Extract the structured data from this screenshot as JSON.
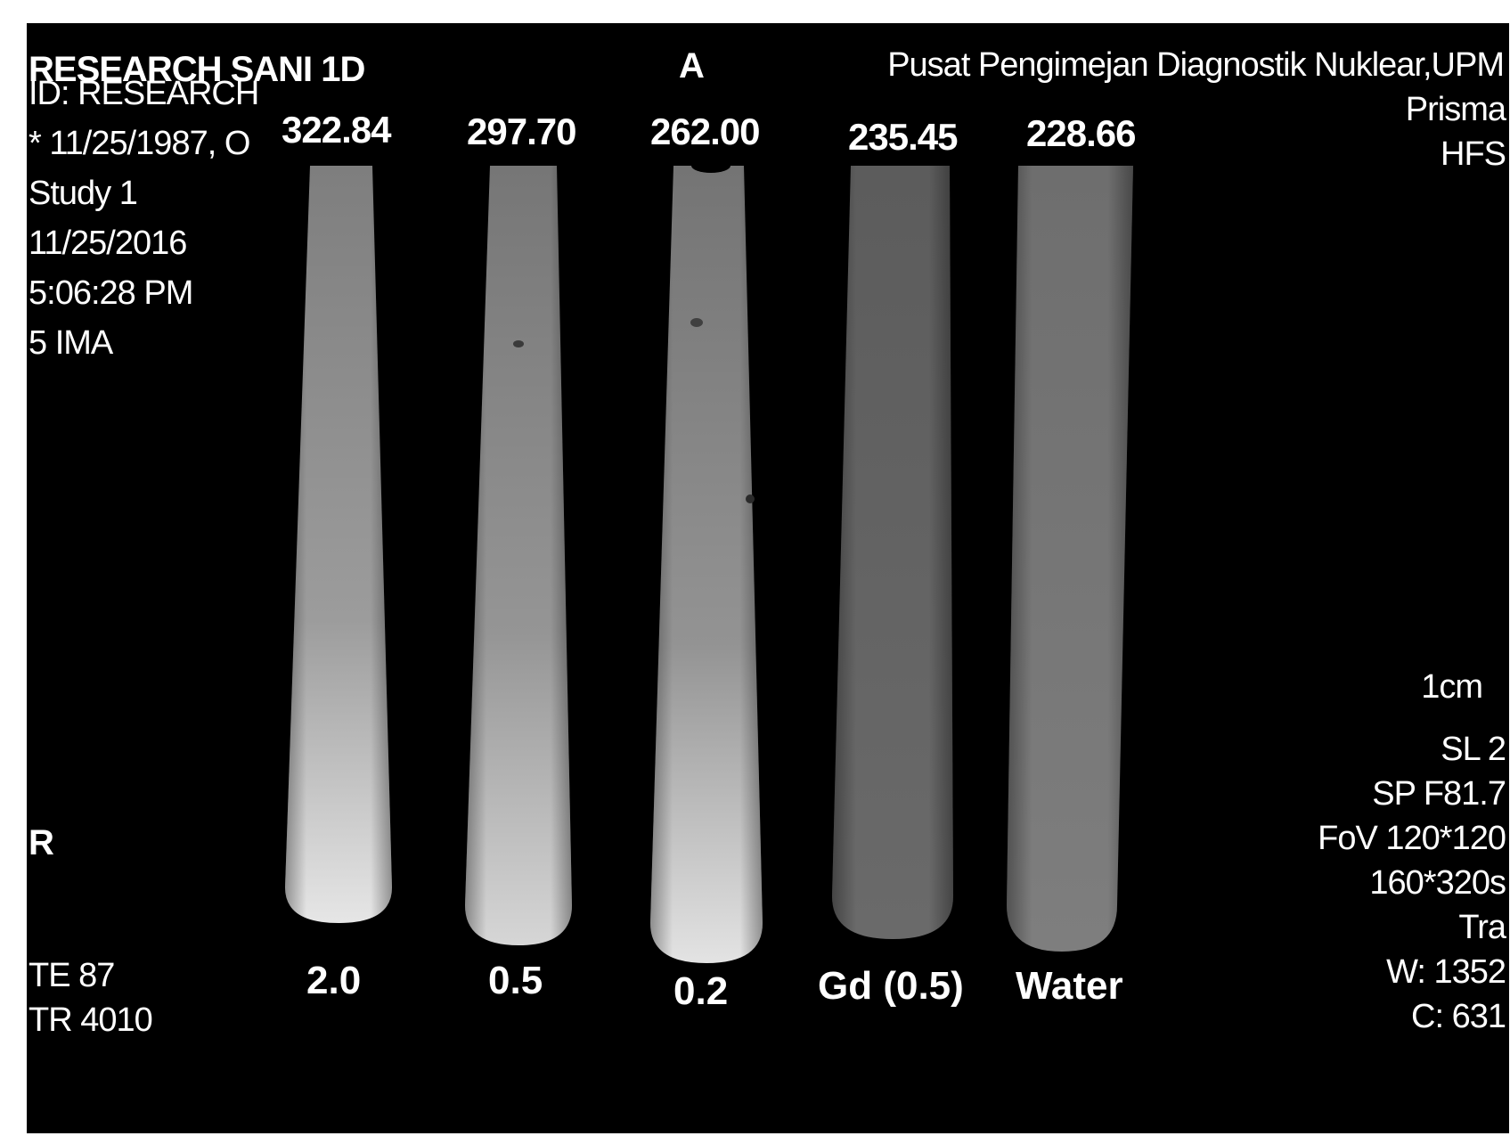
{
  "header": {
    "patient_name": "RESEARCH SANI 1D",
    "orientation_top": "A",
    "institution": "Pusat Pengimejan Diagnostik Nuklear,UPM"
  },
  "left_info": [
    "ID: RESEARCH",
    "* 11/25/1987, O",
    "Study 1",
    "11/25/2016",
    "5:06:28 PM",
    "5 IMA"
  ],
  "orientation_left": "R",
  "right_top": [
    "Prisma",
    "HFS"
  ],
  "scale_label": "1cm",
  "right_bottom": [
    "SL 2",
    "SP F81.7",
    "FoV 120*120",
    "160*320s",
    "Tra",
    "W: 1352",
    "C: 631"
  ],
  "bottom_left": [
    "TE 87",
    "TR 4010"
  ],
  "tubes": [
    {
      "value": "322.84",
      "label": "2.0"
    },
    {
      "value": "297.70",
      "label": "0.5"
    },
    {
      "value": "262.00",
      "label": "0.2"
    },
    {
      "value": "235.45",
      "label": "Gd (0.5)"
    },
    {
      "value": "228.66",
      "label": "Water"
    }
  ]
}
